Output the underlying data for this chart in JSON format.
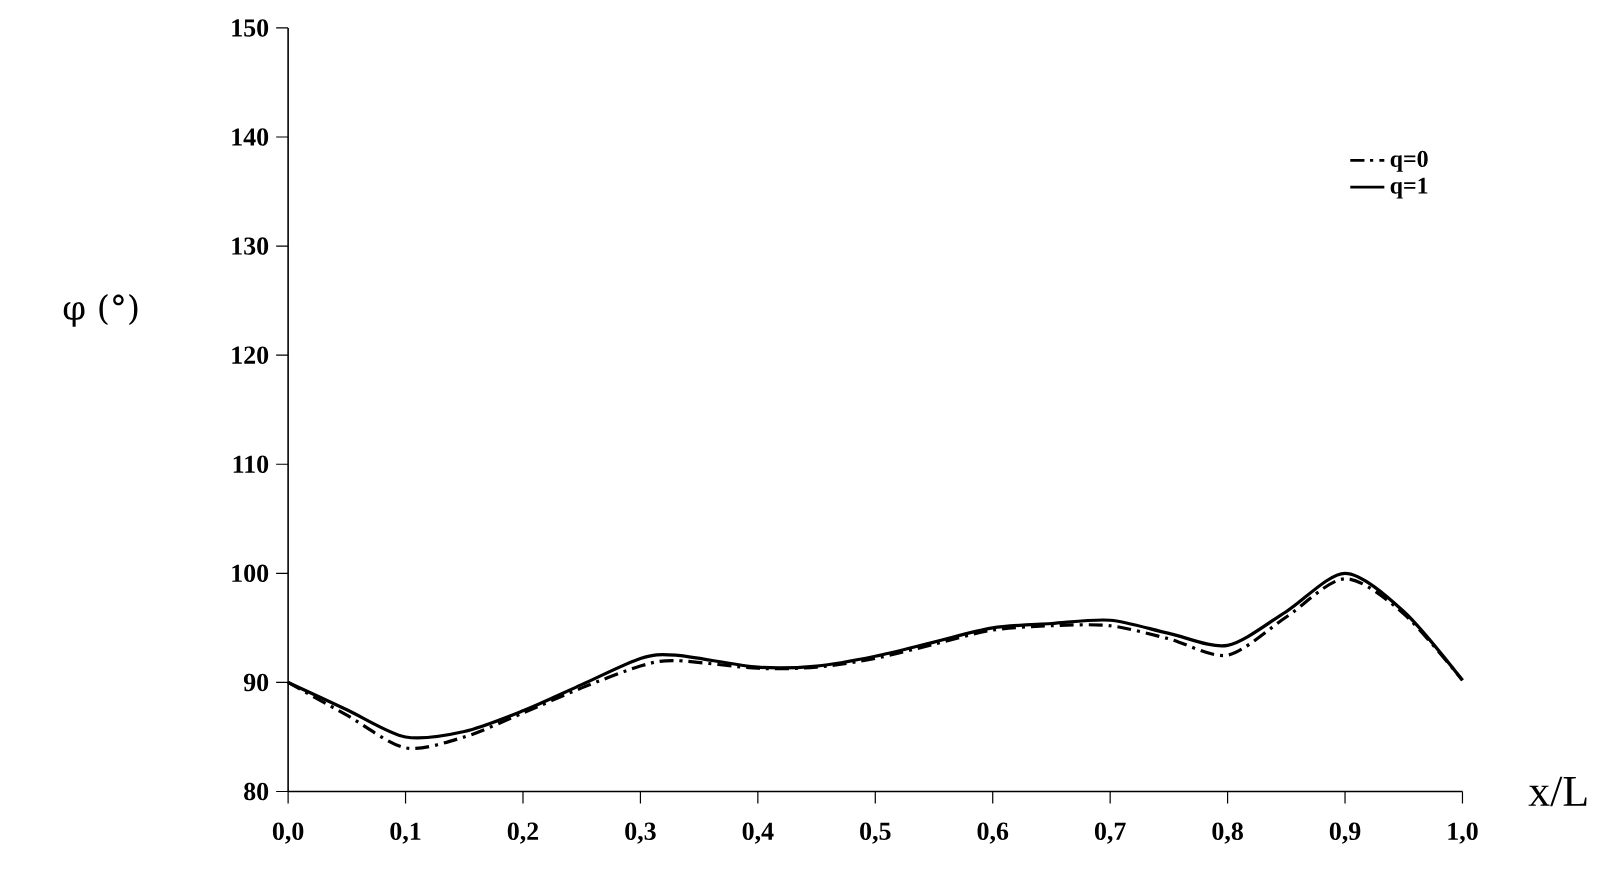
{
  "chart_data": {
    "type": "line",
    "xlabel": "x/L",
    "ylabel": "φ (°)",
    "x": [
      0,
      0.05,
      0.1,
      0.15,
      0.2,
      0.25,
      0.3,
      0.33,
      0.4,
      0.45,
      0.5,
      0.55,
      0.6,
      0.65,
      0.7,
      0.75,
      0.8,
      0.85,
      0.9,
      0.95,
      1.0
    ],
    "series": [
      {
        "name": "q=0",
        "color": "#000000",
        "line_style": "dashdotted",
        "values": [
          90,
          87,
          84,
          85,
          87.2,
          89.5,
          91.5,
          92,
          91.3,
          91.4,
          92.2,
          93.5,
          94.8,
          95.2,
          95.2,
          94,
          92.5,
          96,
          99.5,
          96.3,
          90.2
        ]
      },
      {
        "name": "q=1",
        "color": "#000000",
        "line_style": "solid",
        "values": [
          90,
          87.5,
          85,
          85.5,
          87.4,
          89.8,
          92.2,
          92.5,
          91.4,
          91.5,
          92.4,
          93.7,
          95,
          95.4,
          95.7,
          94.5,
          93.4,
          96.5,
          100,
          96.5,
          90.2
        ]
      }
    ],
    "xlim": [
      0,
      1.0
    ],
    "ylim": [
      80,
      150
    ],
    "xticks": [
      {
        "value": 0,
        "label": "0,0"
      },
      {
        "value": 0.1,
        "label": "0,1"
      },
      {
        "value": 0.2,
        "label": "0,2"
      },
      {
        "value": 0.3,
        "label": "0,3"
      },
      {
        "value": 0.4,
        "label": "0,4"
      },
      {
        "value": 0.5,
        "label": "0,5"
      },
      {
        "value": 0.6,
        "label": "0,6"
      },
      {
        "value": 0.7,
        "label": "0,7"
      },
      {
        "value": 0.8,
        "label": "0,8"
      },
      {
        "value": 0.9,
        "label": "0,9"
      },
      {
        "value": 1.0,
        "label": "1,0"
      }
    ],
    "yticks": [
      80,
      90,
      100,
      110,
      120,
      130,
      140,
      150
    ],
    "legend": "top right",
    "grid": false,
    "marker": "none"
  }
}
